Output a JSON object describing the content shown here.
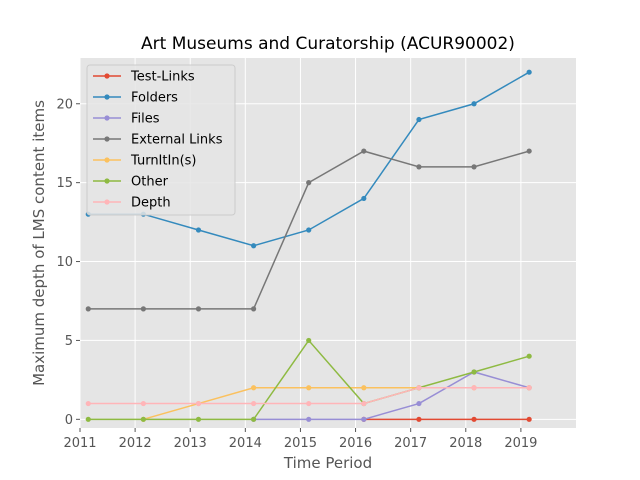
{
  "chart_data": {
    "type": "line",
    "title": "Art Museums and Curatorship (ACUR90002)",
    "xlabel": "Time Period",
    "ylabel": "Maximum depth of LMS content items",
    "xlim": [
      2011,
      2020
    ],
    "ylim": [
      -0.55,
      22.9
    ],
    "xticks": [
      2011,
      2012,
      2013,
      2014,
      2015,
      2016,
      2017,
      2018,
      2019
    ],
    "yticks": [
      0,
      5,
      10,
      15,
      20
    ],
    "grid": true,
    "legend_position": "upper-left",
    "x": [
      2011.15,
      2012.15,
      2013.15,
      2014.15,
      2015.15,
      2016.15,
      2017.15,
      2018.15,
      2019.15
    ],
    "series": [
      {
        "name": "Test-Links",
        "color": "#e24a33",
        "values": [
          null,
          null,
          null,
          null,
          null,
          0,
          0,
          0,
          0
        ]
      },
      {
        "name": "Folders",
        "color": "#348abd",
        "values": [
          13,
          13,
          12,
          11,
          12,
          14,
          19,
          20,
          22
        ]
      },
      {
        "name": "Files",
        "color": "#988ed5",
        "values": [
          null,
          null,
          null,
          0,
          0,
          0,
          1,
          3,
          2
        ]
      },
      {
        "name": "External Links",
        "color": "#777777",
        "values": [
          7,
          7,
          7,
          7,
          15,
          17,
          16,
          16,
          17
        ]
      },
      {
        "name": "TurnItIn(s)",
        "color": "#fbc15e",
        "values": [
          null,
          0,
          1,
          2,
          2,
          2,
          2,
          2,
          2
        ]
      },
      {
        "name": "Other",
        "color": "#8eba42",
        "values": [
          0,
          0,
          0,
          0,
          5,
          1,
          2,
          3,
          4
        ]
      },
      {
        "name": "Depth",
        "color": "#ffb5b8",
        "values": [
          1,
          1,
          1,
          1,
          1,
          1,
          2,
          2,
          2
        ]
      }
    ]
  }
}
